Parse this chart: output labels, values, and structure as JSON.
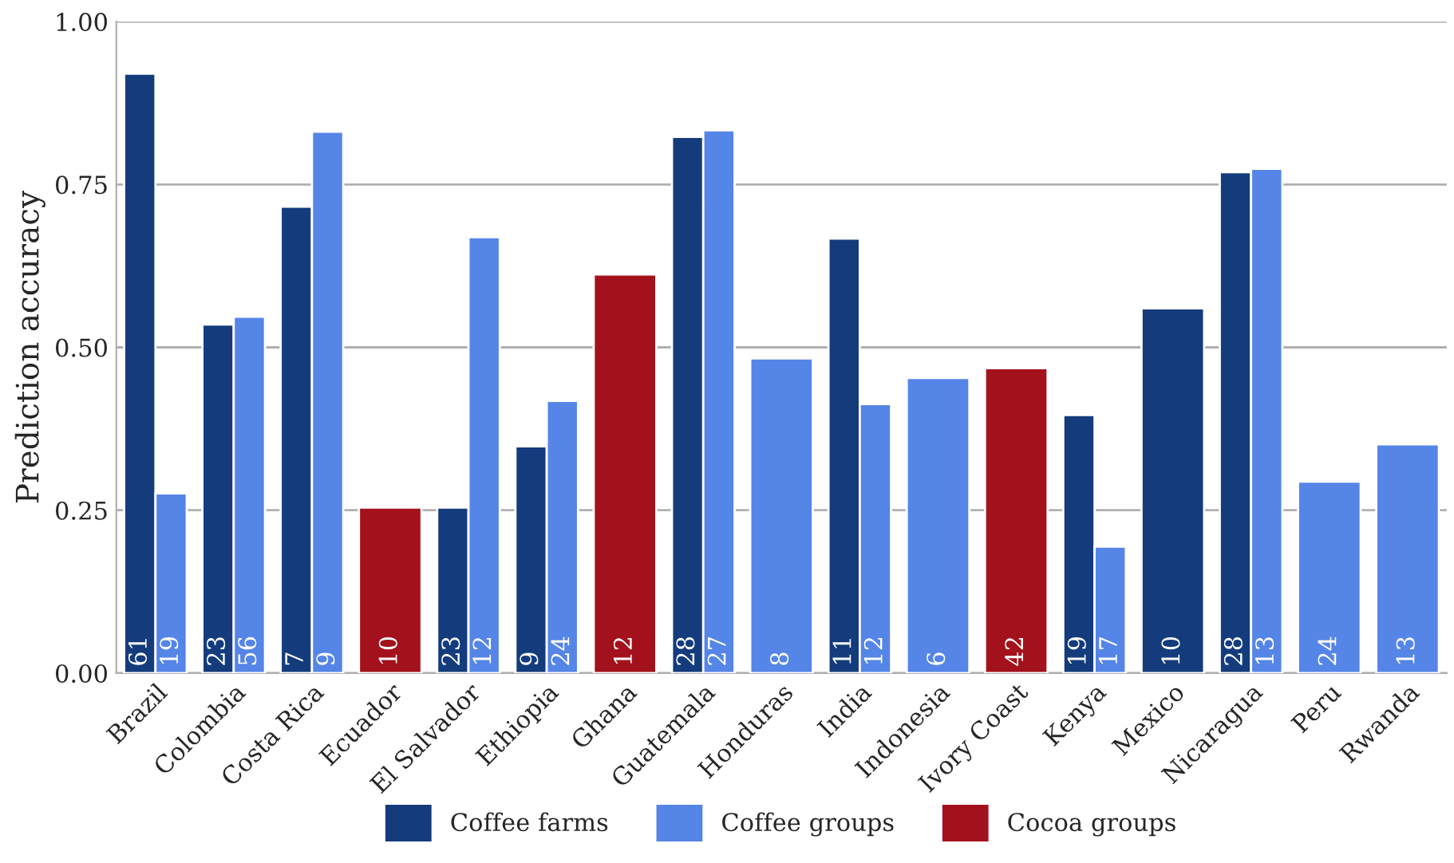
{
  "chart_data": {
    "type": "bar",
    "ylabel": "Prediction accuracy",
    "categories": [
      "Brazil",
      "Colombia",
      "Costa Rica",
      "Ecuador",
      "El Salvador",
      "Ethiopia",
      "Ghana",
      "Guatemala",
      "Honduras",
      "India",
      "Indonesia",
      "Ivory Coast",
      "Kenya",
      "Mexico",
      "Nicaragua",
      "Peru",
      "Rwanda"
    ],
    "series": [
      {
        "name": "Coffee farms",
        "color": "#143c7c",
        "values": [
          0.92,
          0.535,
          0.716,
          null,
          0.254,
          0.348,
          null,
          0.823,
          null,
          0.667,
          null,
          null,
          0.396,
          0.56,
          0.769,
          null,
          null
        ]
      },
      {
        "name": "Coffee groups",
        "color": "#5585e6",
        "values": [
          0.276,
          0.547,
          0.831,
          null,
          0.669,
          0.418,
          null,
          0.833,
          0.483,
          0.413,
          0.453,
          null,
          0.194,
          null,
          0.774,
          0.294,
          0.351
        ]
      },
      {
        "name": "Cocoa groups",
        "color": "#a3121c",
        "values": [
          null,
          null,
          null,
          0.254,
          null,
          null,
          0.612,
          null,
          null,
          null,
          null,
          0.468,
          null,
          null,
          null,
          null,
          null
        ]
      }
    ],
    "annotations": [
      {
        "text": "61",
        "x": "Brazil",
        "y": 0
      },
      {
        "text": "19",
        "x": "Brazil",
        "y": 0
      },
      {
        "text": "23",
        "x": "Colombia",
        "y": 0
      },
      {
        "text": "56",
        "x": "Colombia",
        "y": 0
      },
      {
        "text": "7",
        "x": "Costa Rica",
        "y": 0
      },
      {
        "text": "9",
        "x": "Costa Rica",
        "y": 0
      },
      {
        "text": "10",
        "x": "Ecuador",
        "y": 0
      },
      {
        "text": "23",
        "x": "El Salvador",
        "y": 0
      },
      {
        "text": "12",
        "x": "El Salvador",
        "y": 0
      },
      {
        "text": "9",
        "x": "Ethiopia",
        "y": 0
      },
      {
        "text": "24",
        "x": "Ethiopia",
        "y": 0
      },
      {
        "text": "12",
        "x": "Ghana",
        "y": 0
      },
      {
        "text": "28",
        "x": "Guatemala",
        "y": 0
      },
      {
        "text": "27",
        "x": "Guatemala",
        "y": 0
      },
      {
        "text": "8",
        "x": "Honduras",
        "y": 0
      },
      {
        "text": "11",
        "x": "India",
        "y": 0
      },
      {
        "text": "12",
        "x": "India",
        "y": 0
      },
      {
        "text": "6",
        "x": "Indonesia",
        "y": 0
      },
      {
        "text": "42",
        "x": "Ivory Coast",
        "y": 0
      },
      {
        "text": "19",
        "x": "Kenya",
        "y": 0
      },
      {
        "text": "17",
        "x": "Kenya",
        "y": 0
      },
      {
        "text": "10",
        "x": "Mexico",
        "y": 0
      },
      {
        "text": "28",
        "x": "Nicaragua",
        "y": 0
      },
      {
        "text": "13",
        "x": "Nicaragua",
        "y": 0
      },
      {
        "text": "24",
        "x": "Peru",
        "y": 0
      },
      {
        "text": "13",
        "x": "Rwanda",
        "y": 0
      }
    ],
    "ylim": [
      0,
      1
    ],
    "yticks": [
      {
        "value": 0,
        "label": "0.00"
      },
      {
        "value": 0.25,
        "label": "0.25"
      },
      {
        "value": 0.5,
        "label": "0.50"
      },
      {
        "value": 0.75,
        "label": "0.75"
      },
      {
        "value": 1,
        "label": "1.00"
      }
    ],
    "grid": "y",
    "legend": "bottom"
  }
}
